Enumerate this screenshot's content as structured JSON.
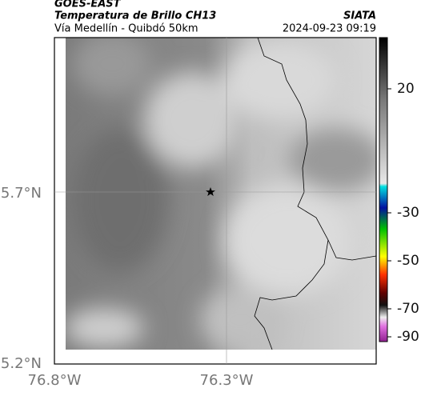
{
  "header": {
    "source": "GOES-EAST",
    "title": "Temperatura de Brillo CH13",
    "brand": "SIATA",
    "route": "Vía Medellín - Quibdó 50km",
    "timestamp": "2024-09-23 09:19"
  },
  "map": {
    "lat_labels": [
      "5.7°N",
      "5.2°N"
    ],
    "lon_labels": [
      "76.8°W",
      "76.3°W"
    ]
  },
  "colorbar": {
    "labels": [
      "20",
      "-30",
      "-50",
      "-70",
      "-90"
    ]
  }
}
